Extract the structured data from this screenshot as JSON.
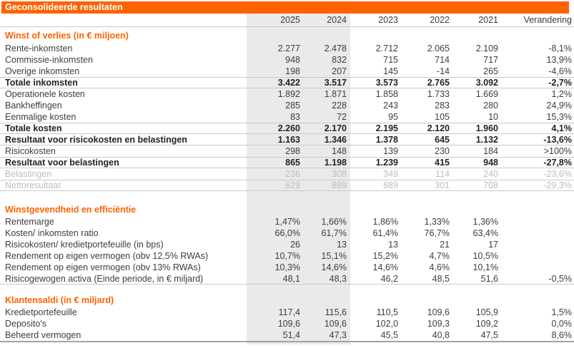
{
  "title": "Geconsolideerde resultaten",
  "columns": [
    "2025",
    "2024",
    "2023",
    "2022",
    "2021",
    "Verandering"
  ],
  "colors": {
    "accent": "#ff6200",
    "shade": "#eaeaea",
    "text": "#3d3d3d",
    "muted": "#bdbdbd",
    "line": "#c9c9c9"
  },
  "highlighted_columns": [
    "2025",
    "2024"
  ],
  "sections": [
    {
      "heading": "Winst of verlies (in € miljoen)",
      "rows": [
        {
          "label": "Rente-inkomsten",
          "kind": "normal",
          "values": [
            "2.277",
            "2.478",
            "2.712",
            "2.065",
            "2.109",
            "-8,1%"
          ]
        },
        {
          "label": "Commissie-inkomsten",
          "kind": "normal",
          "values": [
            "948",
            "832",
            "715",
            "714",
            "717",
            "13,9%"
          ]
        },
        {
          "label": "Overige inkomsten",
          "kind": "normal",
          "values": [
            "198",
            "207",
            "145",
            "-14",
            "265",
            "-4,6%"
          ]
        },
        {
          "label": "Totale inkomsten",
          "kind": "total",
          "values": [
            "3.422",
            "3.517",
            "3.573",
            "2.765",
            "3.092",
            "-2,7%"
          ]
        },
        {
          "label": "Operationele kosten",
          "kind": "normal",
          "values": [
            "1.892",
            "1.871",
            "1.858",
            "1.733",
            "1.669",
            "1,2%"
          ]
        },
        {
          "label": "Bankheffingen",
          "kind": "normal",
          "values": [
            "285",
            "228",
            "243",
            "283",
            "280",
            "24,9%"
          ]
        },
        {
          "label": "Eenmalige kosten",
          "kind": "normal",
          "values": [
            "83",
            "72",
            "95",
            "105",
            "10",
            "15,3%"
          ]
        },
        {
          "label": "Totale kosten",
          "kind": "total",
          "values": [
            "2.260",
            "2.170",
            "2.195",
            "2.120",
            "1.960",
            "4,1%"
          ]
        },
        {
          "label": "Resultaat voor risicokosten en belastingen",
          "kind": "total",
          "values": [
            "1.163",
            "1.346",
            "1.378",
            "645",
            "1.132",
            "-13,6%"
          ]
        },
        {
          "label": "Risicokosten",
          "kind": "normal",
          "values": [
            "298",
            "148",
            "139",
            "230",
            "184",
            ">100%"
          ]
        },
        {
          "label": "Resultaat voor belastingen",
          "kind": "total",
          "values": [
            "865",
            "1.198",
            "1.239",
            "415",
            "948",
            "-27,8%"
          ]
        },
        {
          "label": "Belastingen",
          "kind": "muted",
          "values": [
            "236",
            "308",
            "349",
            "114",
            "240",
            "-23,6%"
          ]
        },
        {
          "label": "Nettoresultaat",
          "kind": "muted-total",
          "values": [
            "629",
            "889",
            "889",
            "301",
            "708",
            "-29,3%"
          ]
        }
      ]
    },
    {
      "heading": "Winstgevendheid en efficiëntie",
      "rows": [
        {
          "label": "Rentemarge",
          "kind": "normal",
          "values": [
            "1,47%",
            "1,66%",
            "1,86%",
            "1,33%",
            "1,36%",
            ""
          ]
        },
        {
          "label": "Kosten/ inkomsten ratio",
          "kind": "normal",
          "values": [
            "66,0%",
            "61,7%",
            "61,4%",
            "76,7%",
            "63,4%",
            ""
          ]
        },
        {
          "label": "Risicokosten/ kredietportefeuille (in bps)",
          "kind": "normal",
          "values": [
            "26",
            "13",
            "13",
            "21",
            "17",
            ""
          ]
        },
        {
          "label": "Rendement op eigen vermogen (obv 12,5% RWAs)",
          "kind": "normal",
          "values": [
            "10,7%",
            "15,1%",
            "15,2%",
            "4,7%",
            "10,5%",
            ""
          ]
        },
        {
          "label": "Rendement op eigen vermogen (obv 13% RWAs)",
          "kind": "normal",
          "values": [
            "10,3%",
            "14,6%",
            "14,6%",
            "4,6%",
            "10,1%",
            ""
          ]
        },
        {
          "label": "Risicogewogen activa (Einde periode, in € miljard)",
          "kind": "section-last",
          "values": [
            "48,1",
            "48,3",
            "46,2",
            "48,5",
            "51,6",
            "-0,5%"
          ]
        }
      ]
    },
    {
      "heading": "Klantensaldi (in € miljard)",
      "rows": [
        {
          "label": "Kredietportefeuille",
          "kind": "normal",
          "values": [
            "117,4",
            "115,6",
            "110,5",
            "109,6",
            "105,9",
            "1,5%"
          ]
        },
        {
          "label": "Deposito's",
          "kind": "normal",
          "values": [
            "109,6",
            "109,6",
            "102,0",
            "109,3",
            "109,2",
            "0,0%"
          ]
        },
        {
          "label": "Beheerd vermogen",
          "kind": "normal",
          "values": [
            "51,4",
            "47,3",
            "45,5",
            "40,8",
            "47,5",
            "8,6%"
          ]
        }
      ]
    }
  ]
}
